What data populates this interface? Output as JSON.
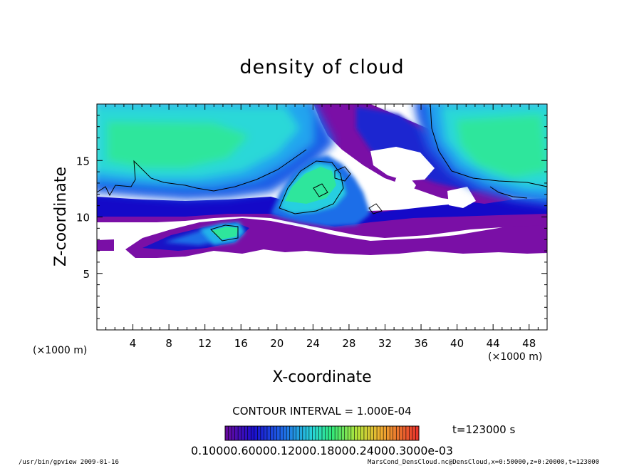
{
  "chart_data": {
    "type": "heatmap",
    "title": "density of cloud",
    "xlabel": "X-coordinate",
    "ylabel": "Z-coordinate",
    "x_unit": "(×1000 m)",
    "y_unit": "(×1000 m)",
    "xlim": [
      0,
      50
    ],
    "ylim": [
      0,
      20
    ],
    "x_ticks": [
      4,
      8,
      12,
      16,
      20,
      24,
      28,
      32,
      36,
      40,
      44,
      48
    ],
    "y_ticks": [
      5,
      10,
      15
    ],
    "contour_interval": "CONTOUR INTERVAL = 1.000E-04",
    "time": "t=123000 s",
    "colorbar_labels": [
      "0.1000",
      "0.6000",
      "0.1200",
      "0.1800",
      "0.2400",
      "0.3000e-03"
    ],
    "colorbar_label_text": "0.10000.60000.12000.18000.24000.3000e-03",
    "colors": {
      "purple": "#7a0fa6",
      "deep_blue": "#1409c8",
      "blue": "#1c5ce6",
      "light_blue": "#22a9f0",
      "cyan": "#29e0d6",
      "green": "#2ce89a",
      "contour": "#000000"
    },
    "regions_description_level": "cloud density field with contour line"
  },
  "footer": {
    "left": "/usr/bin/gpview   2009-01-16",
    "right": "MarsCond_DensCloud.nc@DensCloud,x=0:50000,z=0:20000,t=123000"
  }
}
